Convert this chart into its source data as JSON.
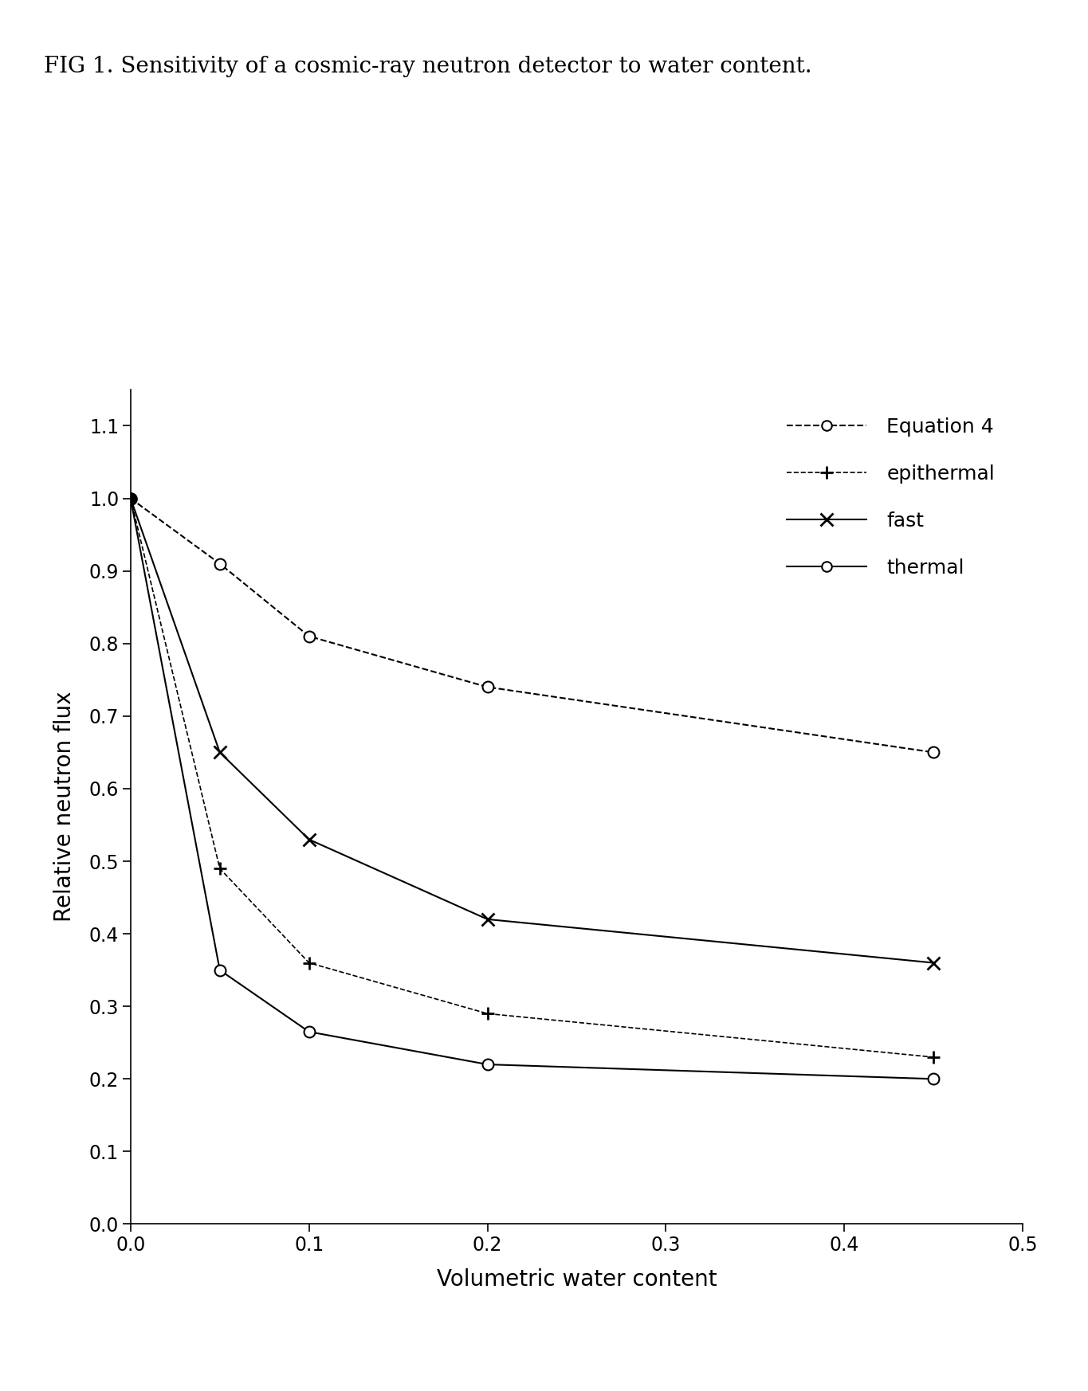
{
  "title": "FIG 1. Sensitivity of a cosmic-ray neutron detector to water content.",
  "xlabel": "Volumetric water content",
  "ylabel": "Relative neutron flux",
  "xlim": [
    0,
    0.5
  ],
  "ylim": [
    0.0,
    1.15
  ],
  "xticks": [
    0.0,
    0.1,
    0.2,
    0.3,
    0.4,
    0.5
  ],
  "yticks": [
    0.0,
    0.1,
    0.2,
    0.3,
    0.4,
    0.5,
    0.6,
    0.7,
    0.8,
    0.9,
    1.0,
    1.1
  ],
  "equation4": {
    "x": [
      0.0,
      0.05,
      0.1,
      0.2,
      0.45
    ],
    "y": [
      1.0,
      0.91,
      0.81,
      0.74,
      0.65
    ],
    "label": "Equation 4"
  },
  "epithermal": {
    "x": [
      0.0,
      0.05,
      0.1,
      0.2,
      0.45
    ],
    "y": [
      1.0,
      0.49,
      0.36,
      0.29,
      0.23
    ],
    "label": "epithermal"
  },
  "fast": {
    "x": [
      0.0,
      0.05,
      0.1,
      0.2,
      0.45
    ],
    "y": [
      1.0,
      0.65,
      0.53,
      0.42,
      0.36
    ],
    "label": "fast"
  },
  "thermal": {
    "x": [
      0.0,
      0.05,
      0.1,
      0.2,
      0.45
    ],
    "y": [
      1.0,
      0.35,
      0.265,
      0.22,
      0.2
    ],
    "label": "thermal"
  },
  "background_color": "#ffffff",
  "title_fontsize": 20,
  "label_fontsize": 20,
  "tick_fontsize": 17,
  "legend_fontsize": 18
}
